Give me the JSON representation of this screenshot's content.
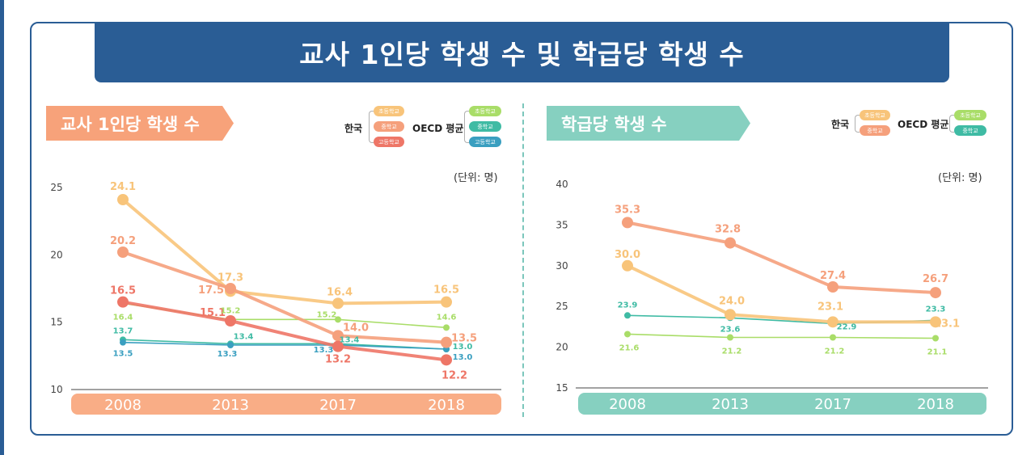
{
  "title": "교사 1인당 학생 수 및 학급당 학생 수",
  "colors": {
    "elem_kr": "#f8c47a",
    "middle_kr": "#f5a07c",
    "high_kr": "#ee7667",
    "elem_oecd": "#a9dd68",
    "middle_oecd": "#3fbba4",
    "high_oecd": "#3a9fc0",
    "primary": "#2a5d95"
  },
  "left": {
    "banner": "교사 1인당 학생 수",
    "unit": "(단위: 명)",
    "legend": {
      "korea_label": "한국",
      "oecd_label": "OECD 평균",
      "korea_items": [
        "초등학교",
        "중학교",
        "고등학교"
      ],
      "oecd_items": [
        "초등학교",
        "중학교",
        "고등학교"
      ]
    }
  },
  "right": {
    "banner": "학급당 학생 수",
    "unit": "(단위: 명)",
    "legend": {
      "korea_label": "한국",
      "oecd_label": "OECD 평균",
      "korea_items": [
        "초등학교",
        "중학교"
      ],
      "oecd_items": [
        "초등학교",
        "중학교"
      ]
    }
  },
  "chart_data": [
    {
      "type": "line",
      "title": "교사 1인당 학생 수",
      "unit": "(단위: 명)",
      "categories": [
        "2008",
        "2013",
        "2017",
        "2018"
      ],
      "ylim": [
        10,
        25
      ],
      "yticks": [
        10,
        15,
        20,
        25
      ],
      "series": [
        {
          "name": "한국 초등학교",
          "group": "korea",
          "color_key": "elem_kr",
          "values": [
            24.1,
            17.3,
            16.4,
            16.5
          ],
          "labels": [
            "24.1",
            "17.3",
            "16.4",
            "16.5"
          ]
        },
        {
          "name": "한국 중학교",
          "group": "korea",
          "color_key": "middle_kr",
          "values": [
            20.2,
            17.5,
            14.0,
            13.5
          ],
          "labels": [
            "20.2",
            "17.5",
            "14.0",
            "13.5"
          ]
        },
        {
          "name": "한국 고등학교",
          "group": "korea",
          "color_key": "high_kr",
          "values": [
            16.5,
            15.1,
            13.2,
            12.2
          ],
          "labels": [
            "16.5",
            "15.1",
            "13.2",
            "12.2"
          ]
        },
        {
          "name": "OECD 초등학교",
          "group": "oecd",
          "color_key": "elem_oecd",
          "values": [
            16.4,
            15.2,
            15.2,
            14.6
          ],
          "labels": [
            "16.4",
            "15.2",
            "15.2",
            "14.6"
          ]
        },
        {
          "name": "OECD 중학교",
          "group": "oecd",
          "color_key": "middle_oecd",
          "values": [
            13.7,
            13.4,
            13.4,
            13.0
          ],
          "labels": [
            "13.7",
            "13.4",
            "13.4",
            "13.0"
          ]
        },
        {
          "name": "OECD 고등학교",
          "group": "oecd",
          "color_key": "high_oecd",
          "values": [
            13.5,
            13.3,
            13.3,
            13.0
          ],
          "labels": [
            "13.5",
            "13.3",
            "13.3",
            "13.0"
          ]
        }
      ]
    },
    {
      "type": "line",
      "title": "학급당 학생 수",
      "unit": "(단위: 명)",
      "categories": [
        "2008",
        "2013",
        "2017",
        "2018"
      ],
      "ylim": [
        15,
        40
      ],
      "yticks": [
        15,
        20,
        25,
        30,
        35,
        40
      ],
      "series": [
        {
          "name": "한국 초등학교",
          "group": "korea",
          "color_key": "elem_kr",
          "values": [
            30.0,
            24.0,
            23.1,
            23.1
          ],
          "labels": [
            "30.0",
            "24.0",
            "23.1",
            "23.1"
          ]
        },
        {
          "name": "한국 중학교",
          "group": "korea",
          "color_key": "middle_kr",
          "values": [
            35.3,
            32.8,
            27.4,
            26.7
          ],
          "labels": [
            "35.3",
            "32.8",
            "27.4",
            "26.7"
          ]
        },
        {
          "name": "OECD 초등학교",
          "group": "oecd",
          "color_key": "elem_oecd",
          "values": [
            21.6,
            21.2,
            21.2,
            21.1
          ],
          "labels": [
            "21.6",
            "21.2",
            "21.2",
            "21.1"
          ]
        },
        {
          "name": "OECD 중학교",
          "group": "oecd",
          "color_key": "middle_oecd",
          "values": [
            23.9,
            23.6,
            22.9,
            23.3
          ],
          "labels": [
            "23.9",
            "23.6",
            "22.9",
            "23.3"
          ]
        }
      ]
    }
  ]
}
